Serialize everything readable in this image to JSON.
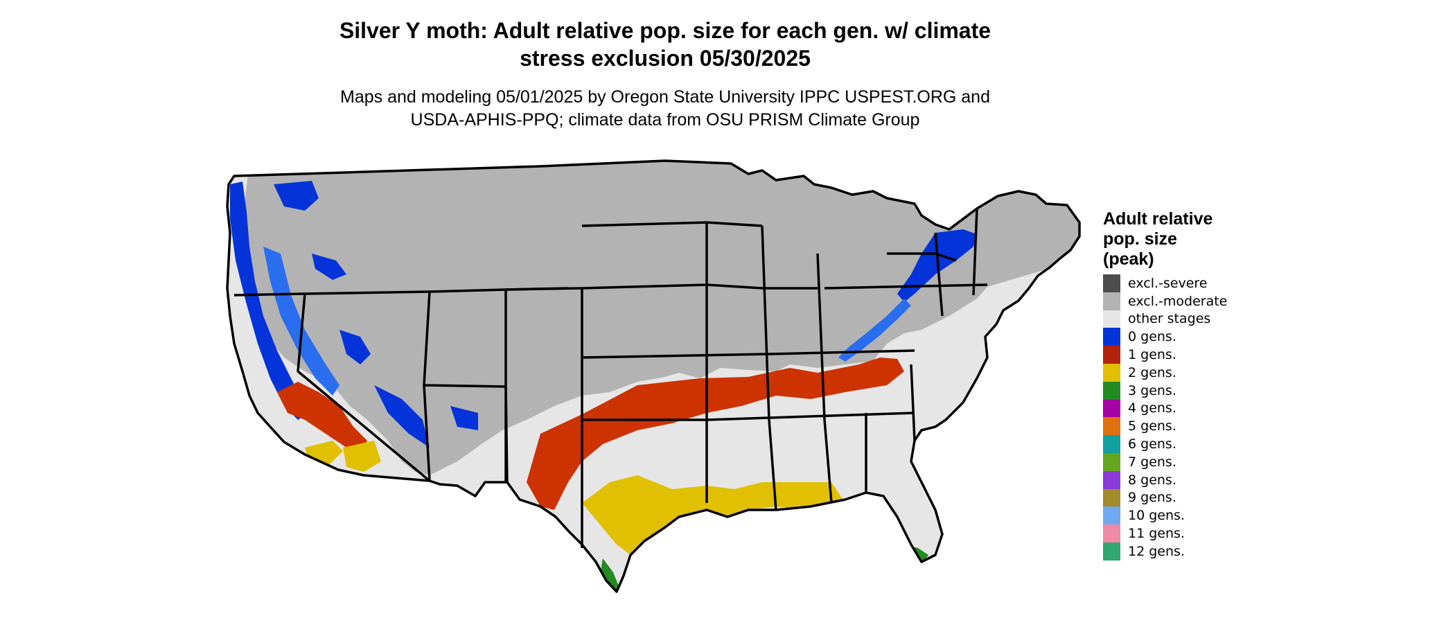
{
  "title": {
    "line1": "Silver Y moth: Adult relative pop. size for each gen. w/ climate",
    "line2": "stress exclusion 05/30/2025"
  },
  "subtitle": {
    "line1": "Maps and modeling 05/01/2025 by Oregon State University IPPC USPEST.ORG and",
    "line2": "USDA-APHIS-PPQ; climate data from OSU PRISM Climate Group"
  },
  "map": {
    "region": "Contiguous United States",
    "state_border_color": "#000000"
  },
  "legend": {
    "title_line1": "Adult relative",
    "title_line2": "pop. size",
    "title_line3": "(peak)",
    "items": [
      {
        "label": "excl.-severe",
        "color": "#4d4d4d"
      },
      {
        "label": "excl.-moderate",
        "color": "#b3b3b3"
      },
      {
        "label": "other stages",
        "color": "#e6e6e6"
      },
      {
        "label": "0 gens.",
        "color": "#0433d9"
      },
      {
        "label": "1 gens.",
        "color": "#b3220d"
      },
      {
        "label": "2 gens.",
        "color": "#e0c000"
      },
      {
        "label": "3 gens.",
        "color": "#228b22"
      },
      {
        "label": "4 gens.",
        "color": "#a600a6"
      },
      {
        "label": "5 gens.",
        "color": "#e07010"
      },
      {
        "label": "6 gens.",
        "color": "#10a0a0"
      },
      {
        "label": "7 gens.",
        "color": "#66a61e"
      },
      {
        "label": "8 gens.",
        "color": "#8a3bd9"
      },
      {
        "label": "9 gens.",
        "color": "#a38a2a"
      },
      {
        "label": "10 gens.",
        "color": "#70a8f0"
      },
      {
        "label": "11 gens.",
        "color": "#f08aa8"
      },
      {
        "label": "12 gens.",
        "color": "#30a870"
      }
    ]
  }
}
